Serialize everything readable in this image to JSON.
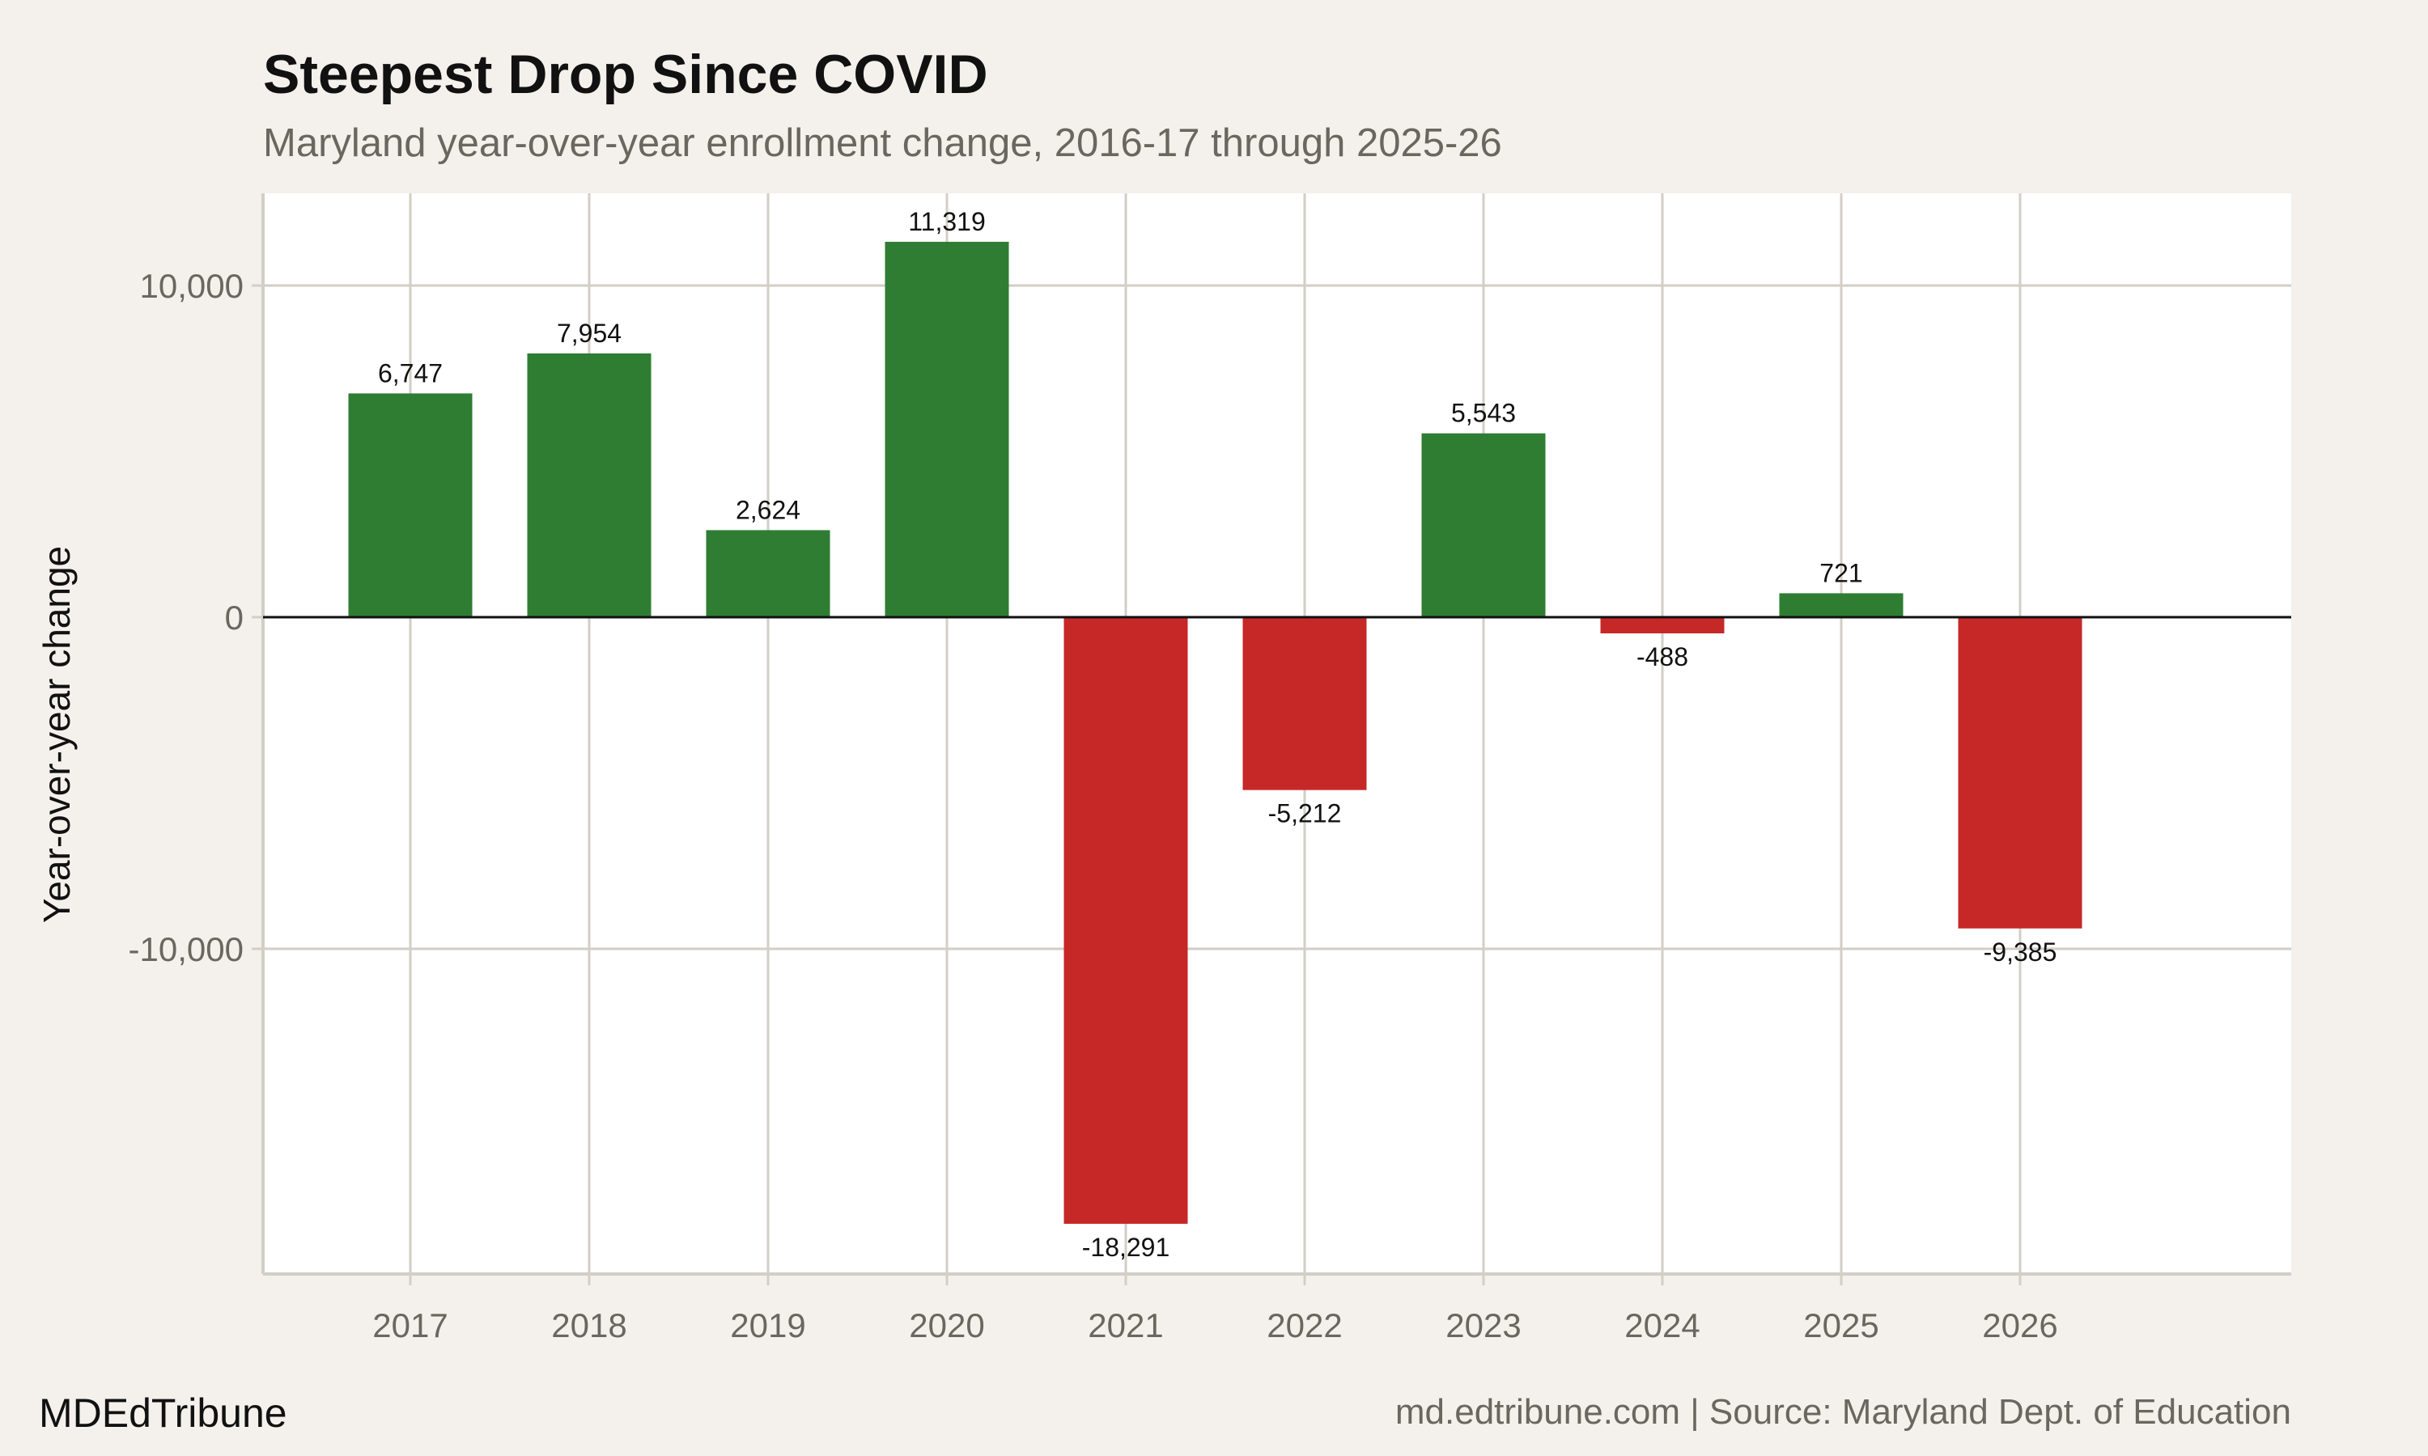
{
  "title": "Steepest Drop Since COVID",
  "subtitle": "Maryland year-over-year enrollment change, 2016-17 through 2025-26",
  "brand": "MDEdTribune",
  "source": "md.edtribune.com | Source: Maryland Dept. of Education",
  "colors": {
    "positive": "#2e7d32",
    "negative": "#c62828",
    "background": "#f4f1ec",
    "panel": "#ffffff",
    "grid": "#d3cec6"
  },
  "chart_data": {
    "type": "bar",
    "title": "Steepest Drop Since COVID",
    "subtitle": "Maryland year-over-year enrollment change, 2016-17 through 2025-26",
    "xlabel": "",
    "ylabel": "Year-over-year change",
    "categories": [
      "2017",
      "2018",
      "2019",
      "2020",
      "2021",
      "2022",
      "2023",
      "2024",
      "2025",
      "2026"
    ],
    "values": [
      6747,
      7954,
      2624,
      11319,
      -18291,
      -5212,
      5543,
      -488,
      721,
      -9385
    ],
    "data_labels": [
      "6,747",
      "7,954",
      "2,624",
      "11,319",
      "-18,291",
      "-5,212",
      "5,543",
      "-488",
      "721",
      "-9,385"
    ],
    "yticks": [
      10000,
      0,
      -10000
    ],
    "ytick_labels": [
      "10,000",
      "0",
      "-10,000"
    ],
    "ylim": [
      -19800,
      12800
    ],
    "grid": true,
    "legend": "none"
  }
}
